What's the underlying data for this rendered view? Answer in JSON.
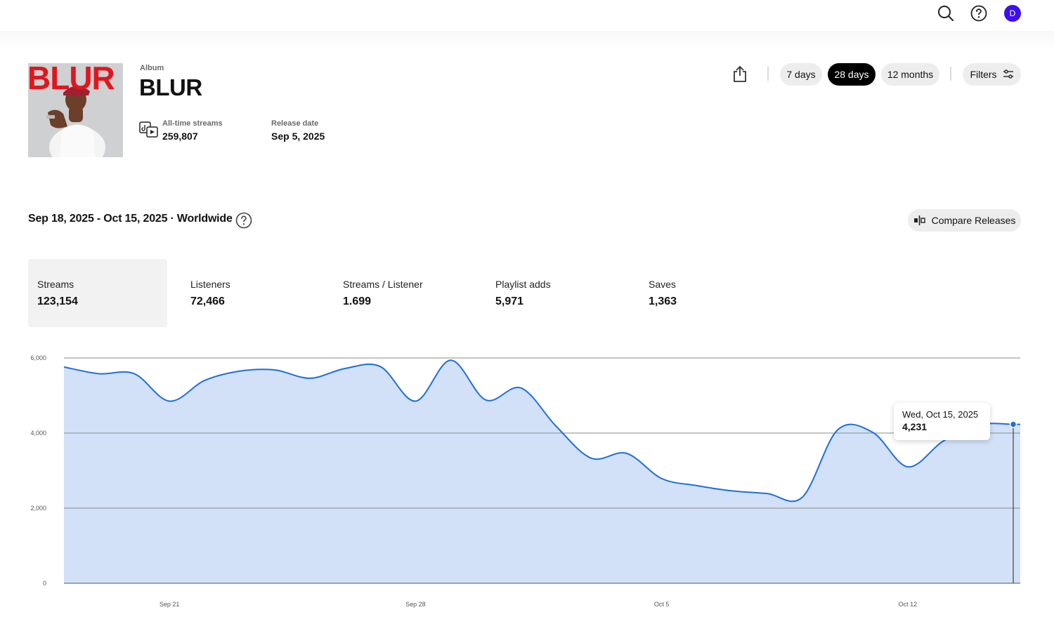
{
  "header": {
    "search_icon": "search-icon",
    "help_icon": "help-icon",
    "avatar_initial": "D",
    "accent_color": "#3d0ef0"
  },
  "album": {
    "kind": "Album",
    "title": "BLUR",
    "cover_text": "BLUR",
    "all_time_label": "All-time streams",
    "all_time_value": "259,807",
    "release_label": "Release date",
    "release_value": "Sep 5, 2025"
  },
  "controls": {
    "share_icon": "share-icon",
    "ranges": [
      "7 days",
      "28 days",
      "12 months"
    ],
    "active_range": "28 days",
    "filters_label": "Filters"
  },
  "summary": {
    "range_text": "Sep 18, 2025 - Oct 15, 2025 · Worldwide",
    "compare_label": "Compare Releases"
  },
  "stats": [
    {
      "label": "Streams",
      "value": "123,154"
    },
    {
      "label": "Listeners",
      "value": "72,466"
    },
    {
      "label": "Streams / Listener",
      "value": "1.699"
    },
    {
      "label": "Playlist adds",
      "value": "5,971"
    },
    {
      "label": "Saves",
      "value": "1,363"
    }
  ],
  "tooltip": {
    "date": "Wed, Oct 15, 2025",
    "value": "4,231"
  },
  "chart_data": {
    "type": "area",
    "x": [
      "Sep 18",
      "Sep 19",
      "Sep 20",
      "Sep 21",
      "Sep 22",
      "Sep 23",
      "Sep 24",
      "Sep 25",
      "Sep 26",
      "Sep 27",
      "Sep 28",
      "Sep 29",
      "Sep 30",
      "Oct 1",
      "Oct 2",
      "Oct 3",
      "Oct 4",
      "Oct 5",
      "Oct 6",
      "Oct 7",
      "Oct 8",
      "Oct 9",
      "Oct 10",
      "Oct 11",
      "Oct 12",
      "Oct 13",
      "Oct 14",
      "Oct 15"
    ],
    "values": [
      5760,
      5580,
      5580,
      4850,
      5400,
      5650,
      5680,
      5460,
      5720,
      5770,
      4850,
      5940,
      4880,
      5200,
      4180,
      3330,
      3460,
      2790,
      2600,
      2460,
      2390,
      2290,
      4080,
      4020,
      3100,
      3780,
      4220,
      4231
    ],
    "series_color": "#1e6fdc",
    "fill_color": "#d2e1f7",
    "ylim": [
      0,
      6000
    ],
    "y_ticks": [
      "0",
      "2,000",
      "4,000",
      "6,000"
    ],
    "x_ticks": [
      "Sep 21",
      "Sep 28",
      "Oct 5",
      "Oct 12"
    ],
    "grid": true,
    "highlighted_index": 27
  }
}
